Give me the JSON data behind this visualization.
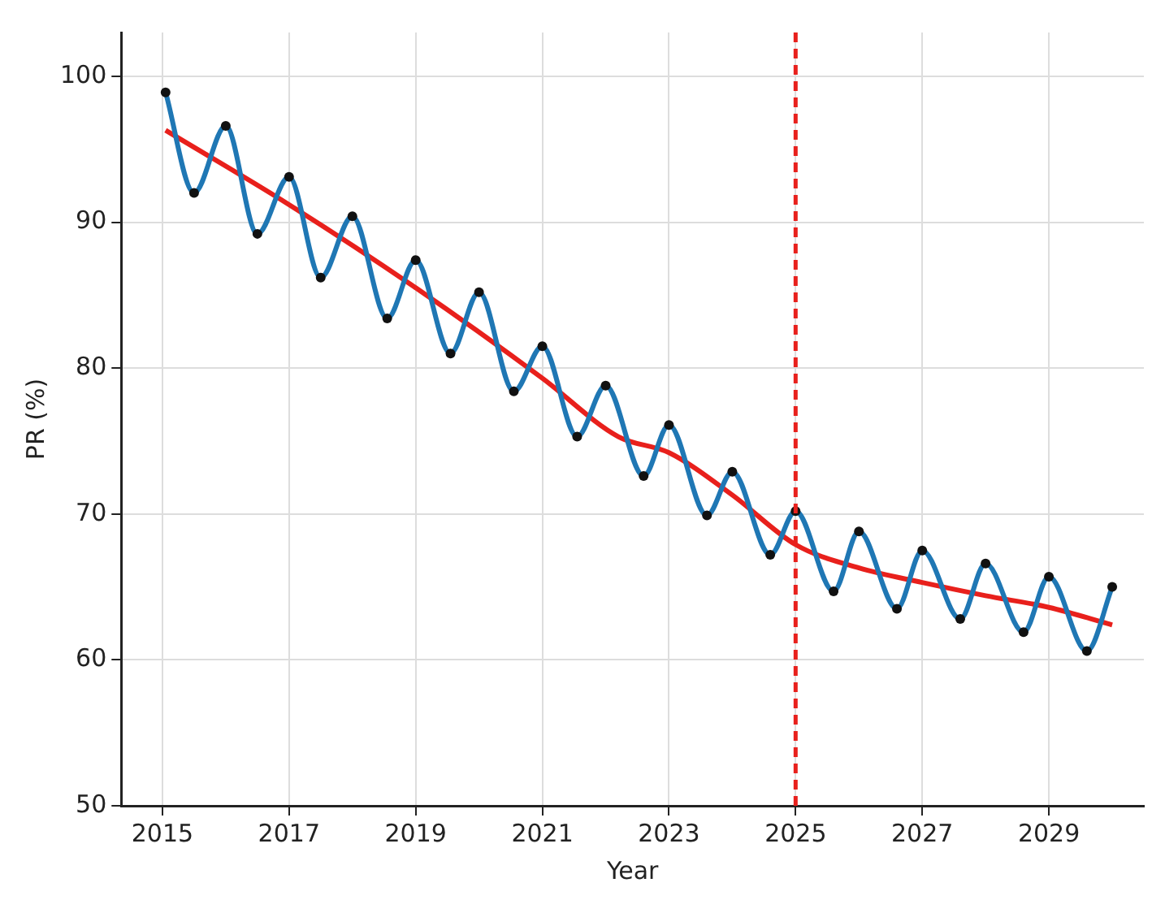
{
  "chart_data": {
    "type": "line",
    "xlabel": "Year",
    "ylabel": "PR (%)",
    "xlim": [
      2014.35,
      2030.5
    ],
    "ylim": [
      50,
      103
    ],
    "xticks": [
      2015,
      2017,
      2019,
      2021,
      2023,
      2025,
      2027,
      2029
    ],
    "yticks": [
      50,
      60,
      70,
      80,
      90,
      100
    ],
    "grid": true,
    "legend": false,
    "line_style": "solid",
    "series": [
      {
        "color": "#1f77b4",
        "marker": "circle",
        "x": [
          2015.05,
          2015.5,
          2016.0,
          2016.5,
          2017.0,
          2017.5,
          2018.0,
          2018.55,
          2019.0,
          2019.55,
          2020.0,
          2020.55,
          2021.0,
          2021.55,
          2022.0,
          2022.6,
          2023.0,
          2023.6,
          2024.0,
          2024.6,
          2025.0,
          2025.6,
          2026.0,
          2026.6,
          2027.0,
          2027.6,
          2028.0,
          2028.6,
          2029.0,
          2029.6,
          2030.0
        ],
        "values": [
          98.9,
          92.0,
          96.6,
          89.2,
          93.1,
          86.2,
          90.4,
          83.4,
          87.4,
          81.0,
          85.2,
          78.4,
          81.5,
          75.3,
          78.8,
          72.6,
          76.1,
          69.9,
          72.9,
          67.2,
          70.2,
          64.7,
          68.8,
          63.5,
          67.5,
          62.8,
          66.6,
          61.9,
          65.7,
          60.6,
          65.0
        ]
      },
      {
        "color": "#e8201c",
        "marker": "none",
        "x": [
          2015.05,
          2017,
          2019,
          2021,
          2022.2,
          2023,
          2024,
          2025,
          2026,
          2027,
          2028,
          2029,
          2030
        ],
        "values": [
          96.3,
          91.2,
          85.5,
          79.3,
          75.3,
          74.2,
          71.3,
          67.9,
          66.3,
          65.3,
          64.4,
          63.6,
          62.4
        ]
      }
    ],
    "ref_lines": [
      {
        "axis": "x",
        "value": 2025,
        "color": "#e8201c",
        "line_style": "dashed"
      }
    ]
  }
}
